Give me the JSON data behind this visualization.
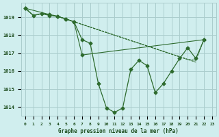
{
  "background_color": "#d0eeee",
  "grid_color": "#aacccc",
  "line_color": "#2d6a2d",
  "title": "Graphe pression niveau de la mer (hPa)",
  "xlabel_ticks": [
    0,
    1,
    2,
    3,
    4,
    5,
    6,
    7,
    8,
    9,
    10,
    11,
    12,
    13,
    14,
    15,
    16,
    17,
    18,
    19,
    20,
    21,
    22,
    23
  ],
  "ylim": [
    1013.5,
    1019.8
  ],
  "yticks": [
    1014,
    1015,
    1016,
    1017,
    1018,
    1019
  ],
  "series1": {
    "x": [
      0,
      1,
      2,
      3,
      4,
      5,
      6,
      7,
      8,
      9,
      10,
      11,
      12,
      13,
      14,
      15,
      16,
      17,
      18,
      19,
      20,
      21,
      22
    ],
    "y": [
      1019.5,
      1019.1,
      1019.2,
      1019.15,
      1019.05,
      1018.9,
      1018.75,
      1018.6,
      1018.45,
      1018.3,
      1018.15,
      1018.0,
      1017.85,
      1017.7,
      1017.55,
      1017.4,
      1017.25,
      1017.1,
      1016.95,
      1016.8,
      1016.65,
      1016.6,
      1017.75
    ],
    "has_markers": false
  },
  "series2": {
    "x": [
      0,
      1,
      2,
      3,
      4,
      5,
      6,
      7,
      8,
      9,
      10,
      11,
      12,
      13,
      14,
      15,
      16,
      17,
      18,
      19,
      20,
      21
    ],
    "y": [
      1019.5,
      1019.1,
      1019.2,
      1019.15,
      1019.05,
      1018.9,
      1018.75,
      1018.6,
      1018.45,
      1018.3,
      1018.15,
      1018.0,
      1017.85,
      1017.7,
      1017.55,
      1017.4,
      1017.25,
      1017.1,
      1016.95,
      1016.8,
      1016.65,
      1016.5
    ],
    "has_markers": false
  },
  "series3": {
    "x": [
      0,
      1,
      2,
      3,
      4,
      5,
      6,
      7,
      8,
      9,
      10,
      11,
      12,
      13,
      14,
      15,
      16,
      17,
      18,
      19,
      20,
      21,
      22
    ],
    "y": [
      1019.5,
      1019.1,
      1019.2,
      1019.1,
      1019.05,
      1018.9,
      1018.75,
      1017.75,
      1017.55,
      1015.3,
      1013.95,
      1013.7,
      1013.95,
      1016.1,
      1016.6,
      1016.3,
      1014.8,
      1015.3,
      1016.0,
      1016.7,
      1017.3,
      1016.7,
      1017.75
    ],
    "has_markers": true
  },
  "series4": {
    "x": [
      0,
      3,
      4,
      5,
      6,
      7,
      22
    ],
    "y": [
      1019.5,
      1019.15,
      1019.05,
      1018.9,
      1018.75,
      1016.9,
      1017.75
    ],
    "has_markers": true
  }
}
